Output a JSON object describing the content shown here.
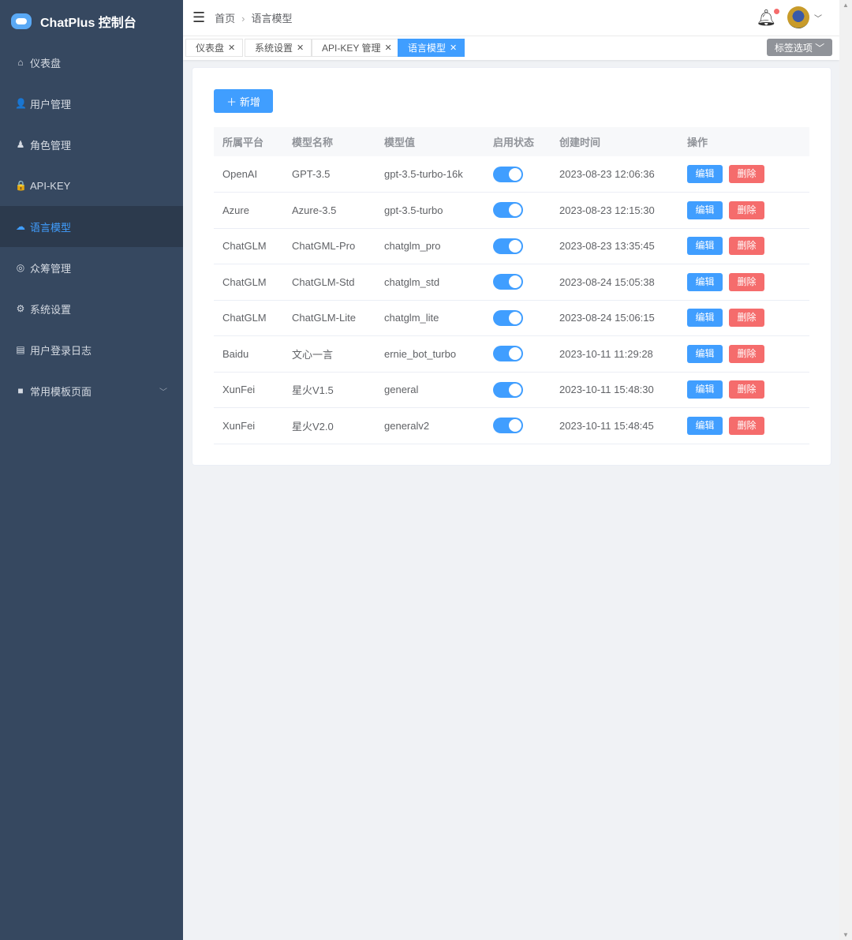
{
  "app": {
    "title": "ChatPlus 控制台"
  },
  "sidebar": {
    "items": [
      {
        "label": "仪表盘",
        "icon": "home-icon",
        "glyph": "⌂"
      },
      {
        "label": "用户管理",
        "icon": "user-icon",
        "glyph": "👤"
      },
      {
        "label": "角色管理",
        "icon": "role-icon",
        "glyph": "♟"
      },
      {
        "label": "API-KEY",
        "icon": "lock-icon",
        "glyph": "🔒"
      },
      {
        "label": "语言模型",
        "icon": "model-icon",
        "glyph": "☁",
        "active": true
      },
      {
        "label": "众筹管理",
        "icon": "medal-icon",
        "glyph": "◎"
      },
      {
        "label": "系统设置",
        "icon": "gear-icon",
        "glyph": "⚙"
      },
      {
        "label": "用户登录日志",
        "icon": "calendar-icon",
        "glyph": "▤"
      },
      {
        "label": "常用模板页面",
        "icon": "grid-icon",
        "glyph": "■",
        "has_children": true
      }
    ]
  },
  "header": {
    "breadcrumb": [
      "首页",
      "语言模型"
    ]
  },
  "tags": {
    "items": [
      {
        "label": "仪表盘"
      },
      {
        "label": "系统设置"
      },
      {
        "label": "API-KEY 管理"
      },
      {
        "label": "语言模型",
        "active": true
      }
    ],
    "options_label": "标签选项"
  },
  "main": {
    "add_label": "新增",
    "columns": [
      "所属平台",
      "模型名称",
      "模型值",
      "启用状态",
      "创建时间",
      "操作"
    ],
    "edit_label": "编辑",
    "delete_label": "删除",
    "rows": [
      {
        "platform": "OpenAI",
        "name": "GPT-3.5",
        "value": "gpt-3.5-turbo-16k",
        "enabled": true,
        "created": "2023-08-23 12:06:36"
      },
      {
        "platform": "Azure",
        "name": "Azure-3.5",
        "value": "gpt-3.5-turbo",
        "enabled": true,
        "created": "2023-08-23 12:15:30"
      },
      {
        "platform": "ChatGLM",
        "name": "ChatGML-Pro",
        "value": "chatglm_pro",
        "enabled": true,
        "created": "2023-08-23 13:35:45"
      },
      {
        "platform": "ChatGLM",
        "name": "ChatGLM-Std",
        "value": "chatglm_std",
        "enabled": true,
        "created": "2023-08-24 15:05:38"
      },
      {
        "platform": "ChatGLM",
        "name": "ChatGLM-Lite",
        "value": "chatglm_lite",
        "enabled": true,
        "created": "2023-08-24 15:06:15"
      },
      {
        "platform": "Baidu",
        "name": "文心一言",
        "value": "ernie_bot_turbo",
        "enabled": true,
        "created": "2023-10-11 11:29:28"
      },
      {
        "platform": "XunFei",
        "name": "星火V1.5",
        "value": "general",
        "enabled": true,
        "created": "2023-10-11 15:48:30"
      },
      {
        "platform": "XunFei",
        "name": "星火V2.0",
        "value": "generalv2",
        "enabled": true,
        "created": "2023-10-11 15:48:45"
      }
    ]
  },
  "colors": {
    "sidebar": "#364860",
    "accent": "#409eff",
    "danger": "#f56c6c"
  }
}
